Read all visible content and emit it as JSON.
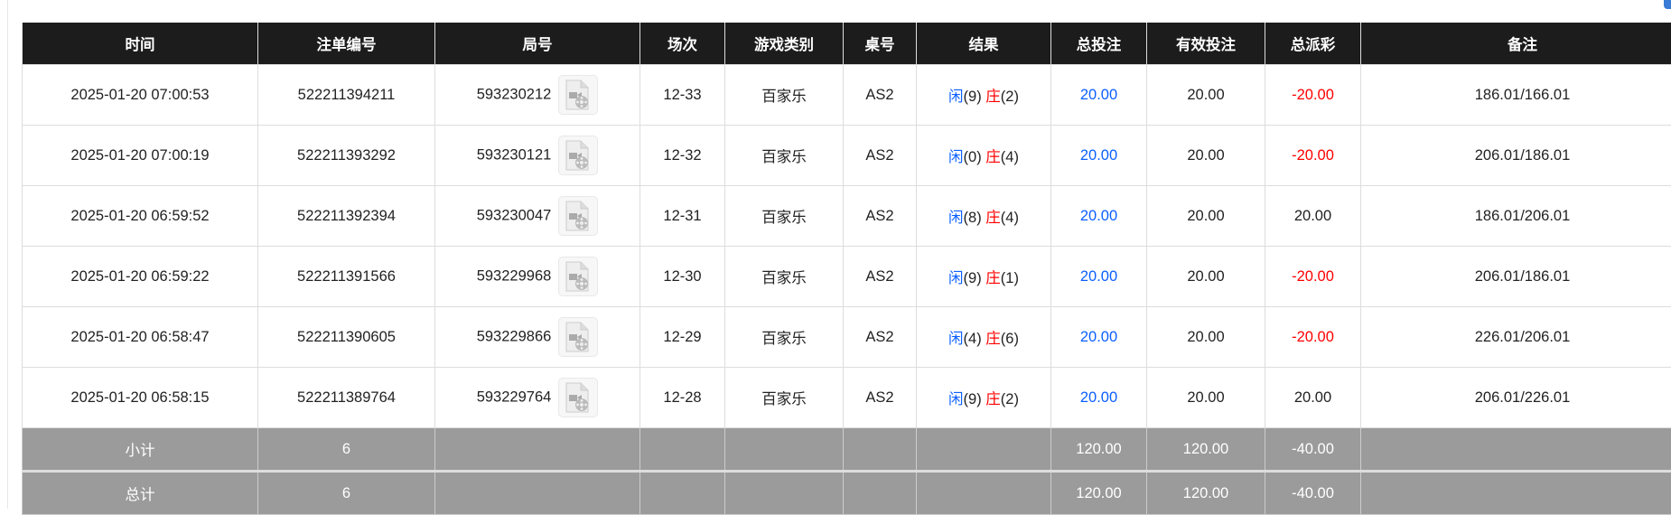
{
  "colors": {
    "header_bg": "#1c1c1c",
    "summary_bg": "#9b9b9b",
    "blue": "#0a5fff",
    "red": "#ff0000"
  },
  "headers": [
    "时间",
    "注单编号",
    "局号",
    "场次",
    "游戏类别",
    "桌号",
    "结果",
    "总投注",
    "有效投注",
    "总派彩",
    "备注"
  ],
  "rows": [
    {
      "time": "2025-01-20 07:00:53",
      "bet_id": "522211394211",
      "round": "593230212",
      "session": "12-33",
      "game": "百家乐",
      "table": "AS2",
      "player": "闲",
      "player_pts": "(9)",
      "banker": "庄",
      "banker_pts": "(2)",
      "total_bet": "20.00",
      "valid_bet": "20.00",
      "payout": "-20.00",
      "payout_negative": true,
      "note": "186.01/166.01"
    },
    {
      "time": "2025-01-20 07:00:19",
      "bet_id": "522211393292",
      "round": "593230121",
      "session": "12-32",
      "game": "百家乐",
      "table": "AS2",
      "player": "闲",
      "player_pts": "(0)",
      "banker": "庄",
      "banker_pts": "(4)",
      "total_bet": "20.00",
      "valid_bet": "20.00",
      "payout": "-20.00",
      "payout_negative": true,
      "note": "206.01/186.01"
    },
    {
      "time": "2025-01-20 06:59:52",
      "bet_id": "522211392394",
      "round": "593230047",
      "session": "12-31",
      "game": "百家乐",
      "table": "AS2",
      "player": "闲",
      "player_pts": "(8)",
      "banker": "庄",
      "banker_pts": "(4)",
      "total_bet": "20.00",
      "valid_bet": "20.00",
      "payout": "20.00",
      "payout_negative": false,
      "note": "186.01/206.01"
    },
    {
      "time": "2025-01-20 06:59:22",
      "bet_id": "522211391566",
      "round": "593229968",
      "session": "12-30",
      "game": "百家乐",
      "table": "AS2",
      "player": "闲",
      "player_pts": "(9)",
      "banker": "庄",
      "banker_pts": "(1)",
      "total_bet": "20.00",
      "valid_bet": "20.00",
      "payout": "-20.00",
      "payout_negative": true,
      "note": "206.01/186.01"
    },
    {
      "time": "2025-01-20 06:58:47",
      "bet_id": "522211390605",
      "round": "593229866",
      "session": "12-29",
      "game": "百家乐",
      "table": "AS2",
      "player": "闲",
      "player_pts": "(4)",
      "banker": "庄",
      "banker_pts": "(6)",
      "total_bet": "20.00",
      "valid_bet": "20.00",
      "payout": "-20.00",
      "payout_negative": true,
      "note": "226.01/206.01"
    },
    {
      "time": "2025-01-20 06:58:15",
      "bet_id": "522211389764",
      "round": "593229764",
      "session": "12-28",
      "game": "百家乐",
      "table": "AS2",
      "player": "闲",
      "player_pts": "(9)",
      "banker": "庄",
      "banker_pts": "(2)",
      "total_bet": "20.00",
      "valid_bet": "20.00",
      "payout": "20.00",
      "payout_negative": false,
      "note": "206.01/226.01"
    }
  ],
  "summary": [
    {
      "label": "小计",
      "count": "6",
      "total_bet": "120.00",
      "valid_bet": "120.00",
      "payout": "-40.00"
    },
    {
      "label": "总计",
      "count": "6",
      "total_bet": "120.00",
      "valid_bet": "120.00",
      "payout": "-40.00"
    }
  ],
  "icons": {
    "replay": "video-file-icon"
  }
}
